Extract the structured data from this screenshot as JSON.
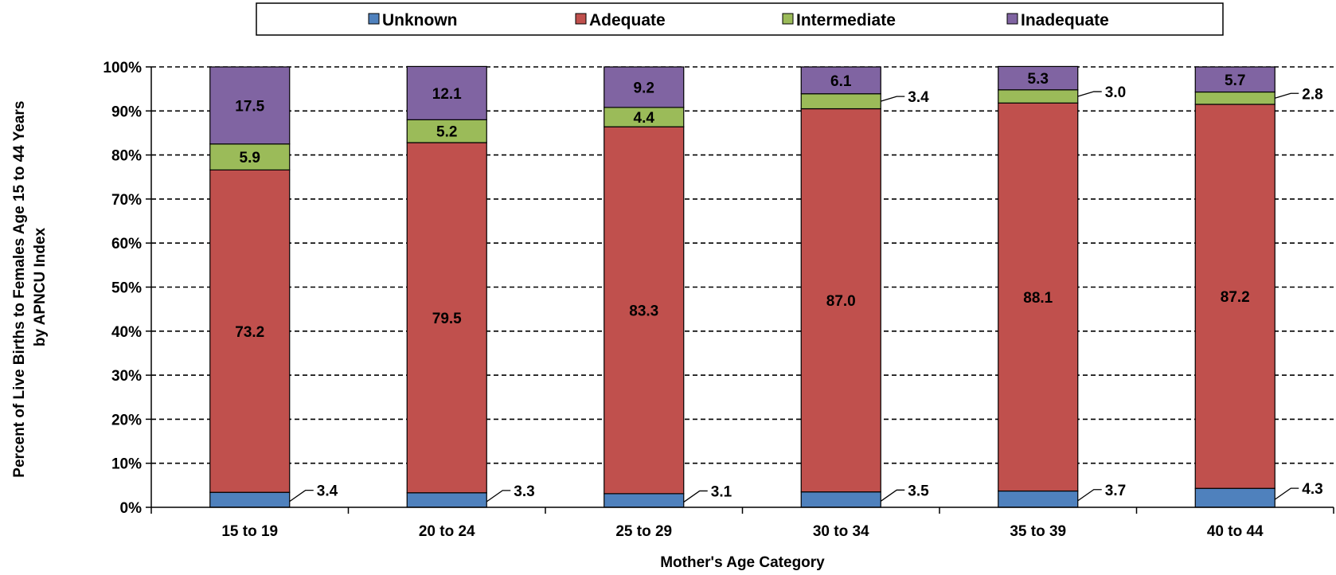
{
  "chart_data": {
    "type": "bar",
    "stacked": true,
    "title": "",
    "xlabel": "Mother's Age Category",
    "ylabel_lines": [
      "Percent of Live Births to Females Age 15 to 44 Years",
      "by APNCU Index"
    ],
    "ylim": [
      0,
      100
    ],
    "yticks": [
      "0%",
      "10%",
      "20%",
      "30%",
      "40%",
      "50%",
      "60%",
      "70%",
      "80%",
      "90%",
      "100%"
    ],
    "grid": "horizontal-dashed",
    "legend_position": "top",
    "categories": [
      "15 to 19",
      "20 to 24",
      "25 to 29",
      "30 to 34",
      "35 to 39",
      "40 to 44"
    ],
    "series": [
      {
        "name": "Unknown",
        "color": "#4f81bd",
        "values": [
          3.4,
          3.3,
          3.1,
          3.5,
          3.7,
          4.3
        ],
        "labels": [
          "3.4",
          "3.3",
          "3.1",
          "3.5",
          "3.7",
          "4.3"
        ]
      },
      {
        "name": "Adequate",
        "color": "#c0504d",
        "values": [
          73.2,
          79.5,
          83.3,
          87.0,
          88.1,
          87.2
        ],
        "labels": [
          "73.2",
          "79.5",
          "83.3",
          "87.0",
          "88.1",
          "87.2"
        ]
      },
      {
        "name": "Intermediate",
        "color": "#9bbb59",
        "values": [
          5.9,
          5.2,
          4.4,
          3.4,
          3.0,
          2.8
        ],
        "labels": [
          "5.9",
          "5.2",
          "4.4",
          "3.4",
          "3.0",
          "2.8"
        ]
      },
      {
        "name": "Inadequate",
        "color": "#8064a2",
        "values": [
          17.5,
          12.1,
          9.2,
          6.1,
          5.3,
          5.7
        ],
        "labels": [
          "17.5",
          "12.1",
          "9.2",
          "6.1",
          "5.3",
          "5.7"
        ]
      }
    ]
  }
}
